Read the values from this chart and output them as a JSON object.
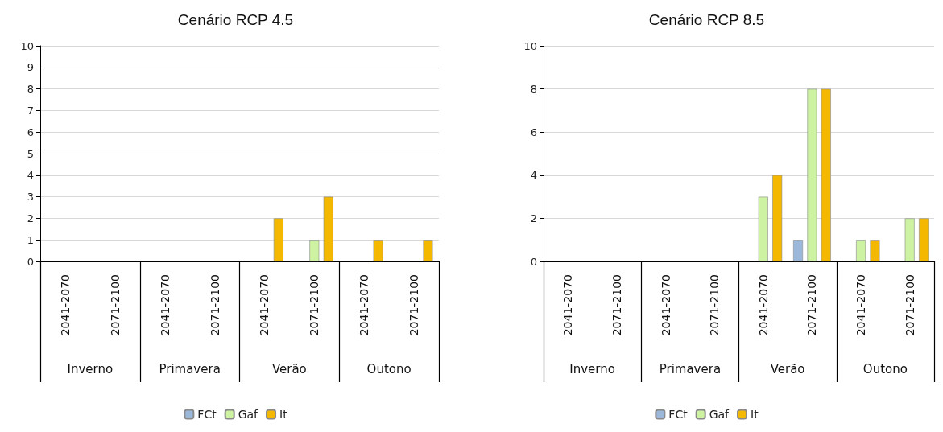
{
  "chart_data": [
    {
      "type": "bar",
      "title": "Cenário RCP 4.5",
      "categories": [
        "2041-2070",
        "2071-2100",
        "2041-2070",
        "2071-2100",
        "2041-2070",
        "2071-2100",
        "2041-2070",
        "2071-2100"
      ],
      "annotations": [
        "Inverno",
        "Primavera",
        "Verão",
        "Outono"
      ],
      "series": [
        {
          "name": "FCt",
          "color": "#9bb7d9",
          "values": [
            0,
            0,
            0,
            0,
            0,
            0,
            0,
            0
          ]
        },
        {
          "name": "Gaf",
          "color": "#ccf2a2",
          "values": [
            0,
            0,
            0,
            0,
            0,
            1,
            0,
            0
          ]
        },
        {
          "name": "It",
          "color": "#f5b800",
          "values": [
            0,
            0,
            0,
            0,
            2,
            3,
            1,
            1
          ]
        }
      ],
      "ylim": [
        0,
        10
      ],
      "yticks": [
        0,
        1,
        2,
        3,
        4,
        5,
        6,
        7,
        8,
        9,
        10
      ],
      "grid": "y",
      "legend": "bottom"
    },
    {
      "type": "bar",
      "title": "Cenário RCP 8.5",
      "categories": [
        "2041-2070",
        "2071-2100",
        "2041-2070",
        "2071-2100",
        "2041-2070",
        "2071-2100",
        "2041-2070",
        "2071-2100"
      ],
      "annotations": [
        "Inverno",
        "Primavera",
        "Verão",
        "Outono"
      ],
      "series": [
        {
          "name": "FCt",
          "color": "#9bb7d9",
          "values": [
            0,
            0,
            0,
            0,
            0,
            1,
            0,
            0
          ]
        },
        {
          "name": "Gaf",
          "color": "#ccf2a2",
          "values": [
            0,
            0,
            0,
            0,
            3,
            8,
            1,
            2
          ]
        },
        {
          "name": "It",
          "color": "#f5b800",
          "values": [
            0,
            0,
            0,
            0,
            4,
            8,
            1,
            2
          ]
        }
      ],
      "ylim": [
        0,
        10
      ],
      "yticks": [
        0,
        2,
        4,
        6,
        8,
        10
      ],
      "grid": "y",
      "legend": "bottom"
    }
  ]
}
